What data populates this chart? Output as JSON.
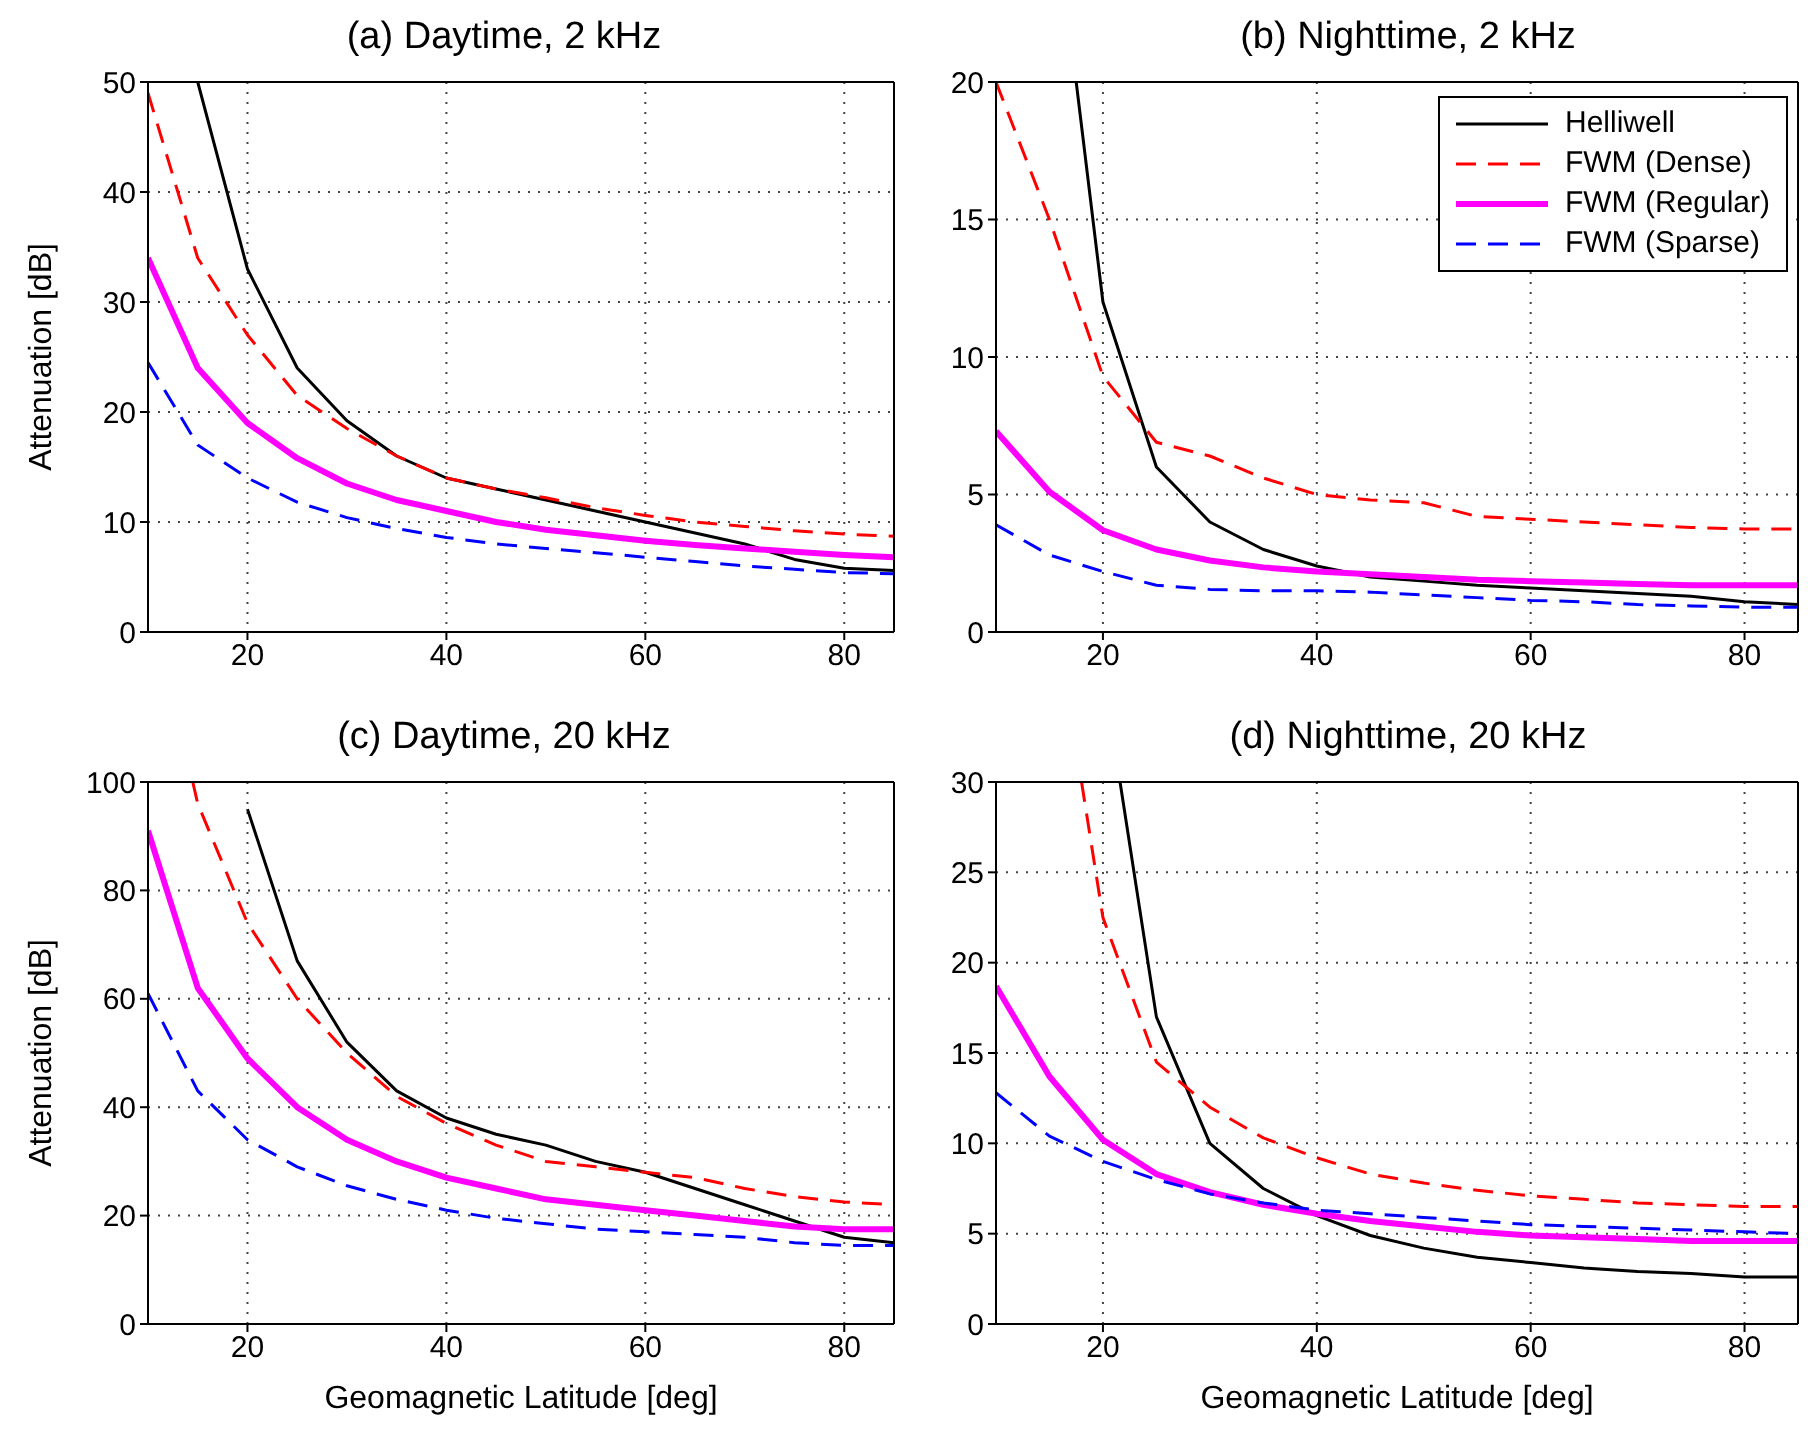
{
  "chart_data": [
    {
      "type": "line",
      "title": "(a) Daytime, 2 kHz",
      "ylabel": "Attenuation [dB]",
      "x": [
        10,
        15,
        20,
        25,
        30,
        35,
        40,
        45,
        50,
        55,
        60,
        65,
        70,
        75,
        80,
        85
      ],
      "xlim": [
        10,
        85
      ],
      "xticks": [
        20,
        40,
        60,
        80
      ],
      "ylim": [
        0,
        50
      ],
      "yticks": [
        0,
        10,
        20,
        30,
        40,
        50
      ],
      "grid": true,
      "legend": false,
      "series": [
        {
          "color": "#000000",
          "line_style": "solid",
          "values": [
            null,
            50,
            33,
            24,
            19.2,
            16,
            14,
            13,
            12,
            11,
            10,
            9,
            8,
            6.6,
            5.8,
            5.6
          ]
        },
        {
          "color": "#ff0000",
          "line_style": "dashed",
          "values": [
            49,
            34,
            27,
            21.5,
            18.5,
            16,
            14,
            13,
            12.2,
            11.3,
            10.6,
            10,
            9.6,
            9.2,
            8.9,
            8.7
          ]
        },
        {
          "color": "#ff00ff",
          "line_style": "solid",
          "values": [
            34,
            24,
            19,
            15.8,
            13.5,
            12,
            11,
            10,
            9.3,
            8.8,
            8.3,
            7.9,
            7.6,
            7.3,
            7,
            6.8
          ]
        },
        {
          "color": "#0000ff",
          "line_style": "dashed",
          "values": [
            24.5,
            17,
            14,
            11.8,
            10.4,
            9.4,
            8.6,
            8,
            7.6,
            7.2,
            6.8,
            6.4,
            6,
            5.7,
            5.4,
            5.3
          ]
        }
      ]
    },
    {
      "type": "line",
      "title": "(b) Nighttime, 2 kHz",
      "x": [
        10,
        15,
        20,
        25,
        30,
        35,
        40,
        45,
        50,
        55,
        60,
        65,
        70,
        75,
        80,
        85
      ],
      "xlim": [
        10,
        85
      ],
      "xticks": [
        20,
        40,
        60,
        80
      ],
      "ylim": [
        0,
        20
      ],
      "yticks": [
        0,
        5,
        10,
        15,
        20
      ],
      "grid": true,
      "legend": "top right",
      "series": [
        {
          "name": "Helliwell",
          "color": "#000000",
          "line_style": "solid",
          "x": [
            17.5,
            20,
            25,
            30,
            35,
            40,
            45,
            50,
            55,
            60,
            65,
            70,
            75,
            80,
            85
          ],
          "values": [
            20,
            12,
            6,
            4,
            3,
            2.4,
            2.0,
            1.85,
            1.7,
            1.6,
            1.5,
            1.4,
            1.3,
            1.1,
            1.0
          ]
        },
        {
          "name": "FWM (Dense)",
          "color": "#ff0000",
          "line_style": "dashed",
          "values": [
            20,
            15,
            9.3,
            6.9,
            6.4,
            5.6,
            5.0,
            4.8,
            4.7,
            4.2,
            4.1,
            4.0,
            3.9,
            3.8,
            3.75,
            3.75
          ]
        },
        {
          "name": "FWM (Regular)",
          "color": "#ff00ff",
          "line_style": "solid",
          "values": [
            7.3,
            5.1,
            3.7,
            3.0,
            2.6,
            2.35,
            2.2,
            2.1,
            2.0,
            1.9,
            1.85,
            1.8,
            1.75,
            1.7,
            1.7,
            1.7
          ]
        },
        {
          "name": "FWM (Sparse)",
          "color": "#0000ff",
          "line_style": "dashed",
          "values": [
            3.9,
            2.8,
            2.2,
            1.7,
            1.55,
            1.5,
            1.5,
            1.45,
            1.35,
            1.25,
            1.15,
            1.1,
            1.0,
            0.95,
            0.9,
            0.9
          ]
        }
      ]
    },
    {
      "type": "line",
      "title": "(c) Daytime, 20 kHz",
      "xlabel": "Geomagnetic Latitude [deg]",
      "ylabel": "Attenuation [dB]",
      "x": [
        10,
        15,
        20,
        25,
        30,
        35,
        40,
        45,
        50,
        55,
        60,
        65,
        70,
        75,
        80,
        85
      ],
      "xlim": [
        10,
        85
      ],
      "xticks": [
        20,
        40,
        60,
        80
      ],
      "ylim": [
        0,
        100
      ],
      "yticks": [
        0,
        20,
        40,
        60,
        80,
        100
      ],
      "grid": true,
      "legend": false,
      "series": [
        {
          "color": "#000000",
          "line_style": "solid",
          "x": [
            20,
            25,
            30,
            35,
            40,
            45,
            50,
            55,
            60,
            65,
            70,
            75,
            80,
            85
          ],
          "values": [
            95,
            67,
            52,
            43,
            38,
            35,
            33,
            30,
            28,
            25,
            22,
            19,
            16,
            15
          ]
        },
        {
          "color": "#ff0000",
          "line_style": "dashed",
          "x": [
            14.5,
            15,
            20,
            25,
            30,
            35,
            40,
            45,
            50,
            55,
            60,
            65,
            70,
            75,
            80,
            85
          ],
          "values": [
            100,
            96,
            74,
            60,
            50,
            42,
            37,
            33,
            30,
            29,
            28,
            27,
            25,
            23.5,
            22.5,
            22
          ]
        },
        {
          "color": "#ff00ff",
          "line_style": "solid",
          "values": [
            91,
            62,
            49,
            40,
            34,
            30,
            27,
            25,
            23,
            22,
            21,
            20,
            19,
            18,
            17.5,
            17.5
          ]
        },
        {
          "color": "#0000ff",
          "line_style": "dashed",
          "values": [
            61,
            43,
            34,
            29,
            25.5,
            23,
            21,
            19.5,
            18.5,
            17.5,
            17,
            16.5,
            16,
            15,
            14.5,
            14.5
          ]
        }
      ]
    },
    {
      "type": "line",
      "title": "(d) Nighttime, 20 kHz",
      "xlabel": "Geomagnetic Latitude [deg]",
      "x": [
        10,
        15,
        20,
        25,
        30,
        35,
        40,
        45,
        50,
        55,
        60,
        65,
        70,
        75,
        80,
        85
      ],
      "xlim": [
        10,
        85
      ],
      "xticks": [
        20,
        40,
        60,
        80
      ],
      "ylim": [
        0,
        30
      ],
      "yticks": [
        0,
        5,
        10,
        15,
        20,
        25,
        30
      ],
      "grid": true,
      "legend": false,
      "series": [
        {
          "color": "#000000",
          "line_style": "solid",
          "x": [
            21.6,
            25,
            30,
            35,
            40,
            45,
            50,
            55,
            60,
            65,
            70,
            75,
            80,
            85
          ],
          "values": [
            30,
            17,
            10,
            7.5,
            6,
            4.9,
            4.2,
            3.7,
            3.4,
            3.1,
            2.9,
            2.8,
            2.6,
            2.6
          ]
        },
        {
          "color": "#ff0000",
          "line_style": "dashed",
          "x": [
            18,
            20,
            25,
            30,
            35,
            40,
            45,
            50,
            55,
            60,
            65,
            70,
            75,
            80,
            85
          ],
          "values": [
            30,
            22.5,
            14.5,
            12,
            10.3,
            9.2,
            8.3,
            7.8,
            7.4,
            7.1,
            6.9,
            6.7,
            6.6,
            6.5,
            6.5
          ]
        },
        {
          "color": "#ff00ff",
          "line_style": "solid",
          "values": [
            18.7,
            13.7,
            10.2,
            8.3,
            7.3,
            6.6,
            6.1,
            5.7,
            5.4,
            5.1,
            4.9,
            4.8,
            4.7,
            4.6,
            4.6,
            4.6
          ]
        },
        {
          "color": "#0000ff",
          "line_style": "dashed",
          "values": [
            12.8,
            10.4,
            9,
            8,
            7.2,
            6.7,
            6.3,
            6.1,
            5.9,
            5.7,
            5.5,
            5.4,
            5.3,
            5.2,
            5.1,
            5.0
          ]
        }
      ]
    }
  ]
}
